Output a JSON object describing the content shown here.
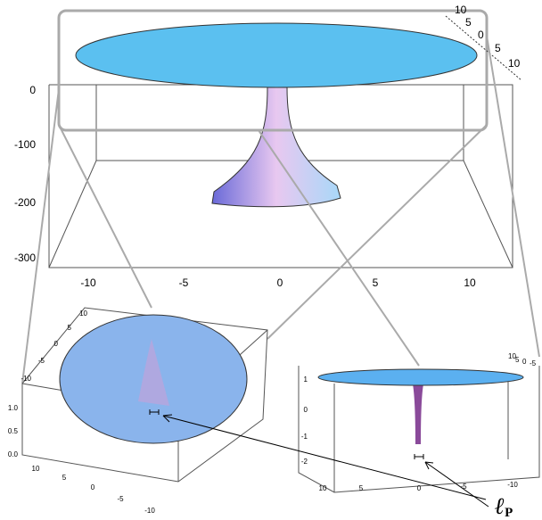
{
  "main_plot": {
    "z_ticks": [
      "0",
      "-100",
      "-200",
      "-300"
    ],
    "x_ticks": [
      "-10",
      "-5",
      "0",
      "5",
      "10"
    ],
    "depth_ticks": [
      "10",
      "5",
      "0",
      "5",
      "10"
    ]
  },
  "left_inset": {
    "top_ticks": [
      "10",
      "5",
      "0",
      "-5",
      "-10"
    ],
    "z_ticks": [
      "1.0",
      "0.5",
      "0.0"
    ],
    "bottom_ticks": [
      "10",
      "5",
      "0",
      "-5",
      "-10"
    ]
  },
  "right_inset": {
    "z_ticks": [
      "1",
      "0",
      "-1",
      "-2"
    ],
    "bottom_ticks": [
      "10",
      "5",
      "0",
      "-5",
      "-10"
    ],
    "depth_ticks": [
      "10",
      "5",
      "0",
      "-5"
    ]
  },
  "label": {
    "symbol": "ℓ",
    "subscript": "P"
  }
}
